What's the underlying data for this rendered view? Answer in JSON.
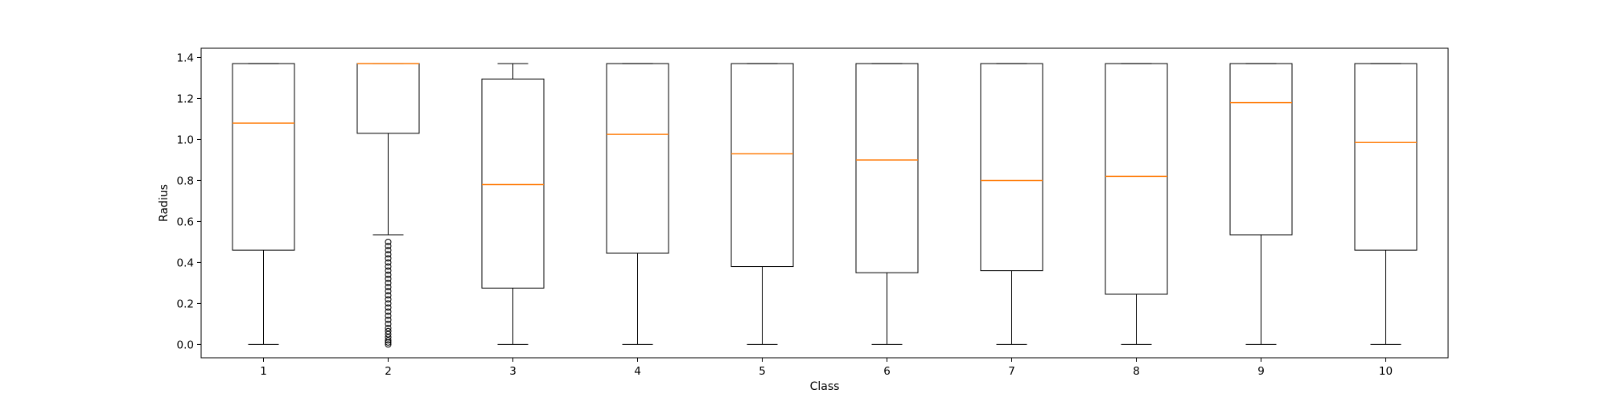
{
  "chart_data": {
    "type": "boxplot",
    "xlabel": "Class",
    "ylabel": "Radius",
    "ylim": [
      -0.065,
      1.445
    ],
    "y_ticks": [
      0.0,
      0.2,
      0.4,
      0.6,
      0.8,
      1.0,
      1.2,
      1.4
    ],
    "y_tick_labels": [
      "0.0",
      "0.2",
      "0.4",
      "0.6",
      "0.8",
      "1.0",
      "1.2",
      "1.4"
    ],
    "categories": [
      "1",
      "2",
      "3",
      "4",
      "5",
      "6",
      "7",
      "8",
      "9",
      "10"
    ],
    "boxes": [
      {
        "category": "1",
        "whisker_low": 0.0,
        "q1": 0.46,
        "median": 1.08,
        "q3": 1.37,
        "whisker_high": 1.37
      },
      {
        "category": "2",
        "whisker_low": 0.535,
        "q1": 1.03,
        "median": 1.37,
        "q3": 1.37,
        "whisker_high": 1.37,
        "outliers": [
          0.0,
          0.01,
          0.02,
          0.035,
          0.05,
          0.065,
          0.08,
          0.1,
          0.12,
          0.14,
          0.16,
          0.18,
          0.2,
          0.22,
          0.24,
          0.26,
          0.28,
          0.3,
          0.32,
          0.34,
          0.36,
          0.38,
          0.4,
          0.42,
          0.44,
          0.46,
          0.48,
          0.5
        ]
      },
      {
        "category": "3",
        "whisker_low": 0.0,
        "q1": 0.275,
        "median": 0.78,
        "q3": 1.295,
        "whisker_high": 1.37
      },
      {
        "category": "4",
        "whisker_low": 0.0,
        "q1": 0.445,
        "median": 1.025,
        "q3": 1.37,
        "whisker_high": 1.37
      },
      {
        "category": "5",
        "whisker_low": 0.0,
        "q1": 0.38,
        "median": 0.93,
        "q3": 1.37,
        "whisker_high": 1.37
      },
      {
        "category": "6",
        "whisker_low": 0.0,
        "q1": 0.35,
        "median": 0.9,
        "q3": 1.37,
        "whisker_high": 1.37
      },
      {
        "category": "7",
        "whisker_low": 0.0,
        "q1": 0.36,
        "median": 0.8,
        "q3": 1.37,
        "whisker_high": 1.37
      },
      {
        "category": "8",
        "whisker_low": 0.0,
        "q1": 0.245,
        "median": 0.82,
        "q3": 1.37,
        "whisker_high": 1.37
      },
      {
        "category": "9",
        "whisker_low": 0.0,
        "q1": 0.535,
        "median": 1.18,
        "q3": 1.37,
        "whisker_high": 1.37
      },
      {
        "category": "10",
        "whisker_low": 0.0,
        "q1": 0.46,
        "median": 0.985,
        "q3": 1.37,
        "whisker_high": 1.37
      }
    ],
    "grid": false,
    "colors": {
      "box": "#000000",
      "median": "#ff7f0e",
      "outlier": "#000000"
    }
  }
}
